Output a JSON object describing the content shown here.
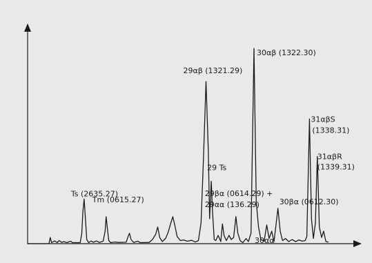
{
  "chart_data": {
    "type": "line",
    "title": "",
    "xlabel": "",
    "ylabel": "",
    "grid": false,
    "legend": "none",
    "axis_color": "#1a1a1a",
    "line_color": "#1a1a1a",
    "background": "#e8e9ea",
    "xlim": [
      0,
      100
    ],
    "ylim": [
      0,
      100
    ],
    "series": [
      {
        "values": [
          [
            0,
            0
          ],
          [
            6.5,
            0
          ],
          [
            6.9,
            3.0
          ],
          [
            7.3,
            0.5
          ],
          [
            7.8,
            1.0
          ],
          [
            8.3,
            1.3
          ],
          [
            9.0,
            0.5
          ],
          [
            9.6,
            1.5
          ],
          [
            10.4,
            0.6
          ],
          [
            11.0,
            1.0
          ],
          [
            12.0,
            0.5
          ],
          [
            12.7,
            1.0
          ],
          [
            13.2,
            1.2
          ],
          [
            13.6,
            0.5
          ],
          [
            16.0,
            0.5
          ],
          [
            16.5,
            5.0
          ],
          [
            16.8,
            15.0
          ],
          [
            17.2,
            21.5
          ],
          [
            17.6,
            12.0
          ],
          [
            18.0,
            2.0
          ],
          [
            18.6,
            0.5
          ],
          [
            19.3,
            1.3
          ],
          [
            20.0,
            0.7
          ],
          [
            21.0,
            1.3
          ],
          [
            21.8,
            0.6
          ],
          [
            23.0,
            1.2
          ],
          [
            23.6,
            6.0
          ],
          [
            23.9,
            13.0
          ],
          [
            24.3,
            7.0
          ],
          [
            24.7,
            1.5
          ],
          [
            25.3,
            0.5
          ],
          [
            26.5,
            0.8
          ],
          [
            27.5,
            0.6
          ],
          [
            30.0,
            0.7
          ],
          [
            30.6,
            3.5
          ],
          [
            31.0,
            5.0
          ],
          [
            31.5,
            2.0
          ],
          [
            32.3,
            0.6
          ],
          [
            33.5,
            1.2
          ],
          [
            34.3,
            0.5
          ],
          [
            37.0,
            0.6
          ],
          [
            38.0,
            2.0
          ],
          [
            39.0,
            4.5
          ],
          [
            39.6,
            8.0
          ],
          [
            40.2,
            3.0
          ],
          [
            41.0,
            1.0
          ],
          [
            42.0,
            2.5
          ],
          [
            42.8,
            5.5
          ],
          [
            43.5,
            9.5
          ],
          [
            44.2,
            13.0
          ],
          [
            44.8,
            9.0
          ],
          [
            45.5,
            3.5
          ],
          [
            46.5,
            1.5
          ],
          [
            47.5,
            1.8
          ],
          [
            48.5,
            1.2
          ],
          [
            50.0,
            1.6
          ],
          [
            51.0,
            0.8
          ],
          [
            52.0,
            1.5
          ],
          [
            52.8,
            10.0
          ],
          [
            53.5,
            40.0
          ],
          [
            54.3,
            78.0
          ],
          [
            55.0,
            45.0
          ],
          [
            55.4,
            12.0
          ],
          [
            55.9,
            30.0
          ],
          [
            56.3,
            15.0
          ],
          [
            56.8,
            2.0
          ],
          [
            57.3,
            1.5
          ],
          [
            58.0,
            4.0
          ],
          [
            58.8,
            1.0
          ],
          [
            59.3,
            9.5
          ],
          [
            59.8,
            4.0
          ],
          [
            60.5,
            1.5
          ],
          [
            61.3,
            4.0
          ],
          [
            62.0,
            2.0
          ],
          [
            62.7,
            3.0
          ],
          [
            63.4,
            13.0
          ],
          [
            64.0,
            5.0
          ],
          [
            64.7,
            1.5
          ],
          [
            65.5,
            0.5
          ],
          [
            66.5,
            2.5
          ],
          [
            67.2,
            1.0
          ],
          [
            68.0,
            5.0
          ],
          [
            68.9,
            94.0
          ],
          [
            69.6,
            20.0
          ],
          [
            70.3,
            8.0
          ],
          [
            71.0,
            2.0
          ],
          [
            72.0,
            1.2
          ],
          [
            72.8,
            9.0
          ],
          [
            73.5,
            2.5
          ],
          [
            74.3,
            6.0
          ],
          [
            75.0,
            1.0
          ],
          [
            75.6,
            9.0
          ],
          [
            76.2,
            17.0
          ],
          [
            76.9,
            6.0
          ],
          [
            77.6,
            1.5
          ],
          [
            78.5,
            2.5
          ],
          [
            79.5,
            1.0
          ],
          [
            80.5,
            2.0
          ],
          [
            81.6,
            1.0
          ],
          [
            82.6,
            1.8
          ],
          [
            83.6,
            1.2
          ],
          [
            84.5,
            1.5
          ],
          [
            85.0,
            3.5
          ],
          [
            85.8,
            60.0
          ],
          [
            86.4,
            12.0
          ],
          [
            87.0,
            2.5
          ],
          [
            87.6,
            10.0
          ],
          [
            88.2,
            42.0
          ],
          [
            88.8,
            8.0
          ],
          [
            89.5,
            3.0
          ],
          [
            90.1,
            6.0
          ],
          [
            90.8,
            1.0
          ],
          [
            91.5,
            0.8
          ]
        ]
      }
    ],
    "annotations": [
      {
        "text": "Ts (2635.27)",
        "x": 17.2,
        "y": 21.5,
        "anchor": "left",
        "dx": -19,
        "dy": -4
      },
      {
        "text": "Tm (0615.27)",
        "x": 23.9,
        "y": 13.0,
        "anchor": "left",
        "dx": -20,
        "dy": -21
      },
      {
        "text": "29αβ (1321.29)",
        "x": 54.3,
        "y": 78.0,
        "anchor": "left",
        "dx": -33,
        "dy": -12
      },
      {
        "text": "29 Ts",
        "x": 55.9,
        "y": 30.0,
        "anchor": "left",
        "dx": -6,
        "dy": -16
      },
      {
        "text": "29βα (0614.29) +",
        "x": 63.4,
        "y": 13.0,
        "anchor": "left",
        "dx": -45,
        "dy": -30
      },
      {
        "text": "29αα (136.29)",
        "x": 63.4,
        "y": 13.0,
        "anchor": "left",
        "dx": -45,
        "dy": -14
      },
      {
        "text": "30αβ (1322.30)",
        "x": 68.9,
        "y": 94.0,
        "anchor": "left",
        "dx": 4,
        "dy": 10
      },
      {
        "text": "30αα",
        "x": 68.9,
        "y": 5.0,
        "anchor": "left",
        "dx": 1,
        "dy": 14
      },
      {
        "text": "30βα (0612.30)",
        "x": 76.2,
        "y": 17.0,
        "anchor": "left",
        "dx": 2,
        "dy": -6
      },
      {
        "text": "31αβS",
        "x": 85.8,
        "y": 60.0,
        "anchor": "left",
        "dx": 2,
        "dy": 4
      },
      {
        "text": "(1338.31)",
        "x": 85.8,
        "y": 60.0,
        "anchor": "left",
        "dx": 4,
        "dy": 20
      },
      {
        "text": "31αβR",
        "x": 88.2,
        "y": 42.0,
        "anchor": "left",
        "dx": 0,
        "dy": 4
      },
      {
        "text": "(1339.31)",
        "x": 88.2,
        "y": 42.0,
        "anchor": "left",
        "dx": 0,
        "dy": 19
      }
    ]
  }
}
